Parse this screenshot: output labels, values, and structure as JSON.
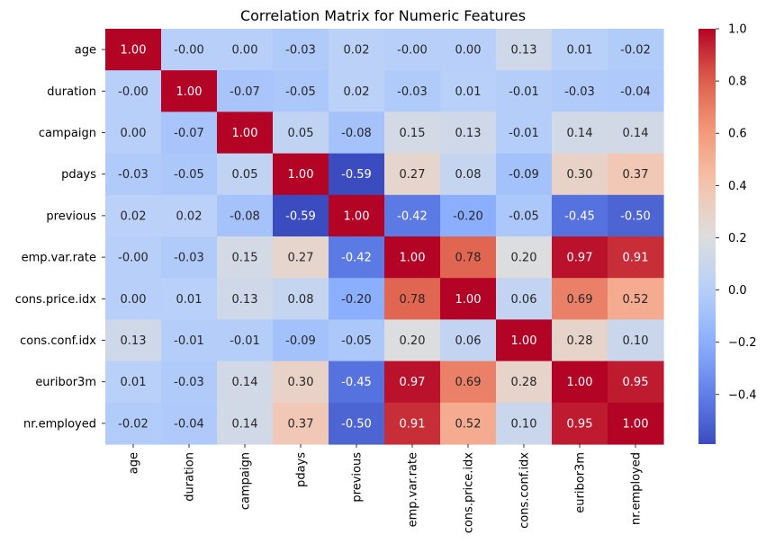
{
  "chart_data": {
    "type": "heatmap",
    "title": "Correlation Matrix for Numeric Features",
    "xlabel": "",
    "ylabel": "",
    "labels": [
      "age",
      "duration",
      "campaign",
      "pdays",
      "previous",
      "emp.var.rate",
      "cons.price.idx",
      "cons.conf.idx",
      "euribor3m",
      "nr.employed"
    ],
    "values": [
      [
        1.0,
        -0.0,
        0.0,
        -0.03,
        0.02,
        -0.0,
        0.0,
        0.13,
        0.01,
        -0.02
      ],
      [
        -0.0,
        1.0,
        -0.07,
        -0.05,
        0.02,
        -0.03,
        0.01,
        -0.01,
        -0.03,
        -0.04
      ],
      [
        0.0,
        -0.07,
        1.0,
        0.05,
        -0.08,
        0.15,
        0.13,
        -0.01,
        0.14,
        0.14
      ],
      [
        -0.03,
        -0.05,
        0.05,
        1.0,
        -0.59,
        0.27,
        0.08,
        -0.09,
        0.3,
        0.37
      ],
      [
        0.02,
        0.02,
        -0.08,
        -0.59,
        1.0,
        -0.42,
        -0.2,
        -0.05,
        -0.45,
        -0.5
      ],
      [
        -0.0,
        -0.03,
        0.15,
        0.27,
        -0.42,
        1.0,
        0.78,
        0.2,
        0.97,
        0.91
      ],
      [
        0.0,
        0.01,
        0.13,
        0.08,
        -0.2,
        0.78,
        1.0,
        0.06,
        0.69,
        0.52
      ],
      [
        0.13,
        -0.01,
        -0.01,
        -0.09,
        -0.05,
        0.2,
        0.06,
        1.0,
        0.28,
        0.1
      ],
      [
        0.01,
        -0.03,
        0.14,
        0.3,
        -0.45,
        0.97,
        0.69,
        0.28,
        1.0,
        0.95
      ],
      [
        -0.02,
        -0.04,
        0.14,
        0.37,
        -0.5,
        0.91,
        0.52,
        0.1,
        0.95,
        1.0
      ]
    ],
    "value_format": "2 decimals",
    "colormap": "coolwarm",
    "color_range": [
      -0.59,
      1.0
    ],
    "colorbar_ticks": [
      1.0,
      0.8,
      0.6,
      0.4,
      0.2,
      0.0,
      -0.2,
      -0.4
    ],
    "colorbar_tick_labels": [
      "1.0",
      "0.8",
      "0.6",
      "0.4",
      "0.2",
      "0.0",
      "−0.2",
      "−0.4"
    ],
    "x_tick_rotation": "vertical",
    "grid": false,
    "legend": "colorbar-right"
  }
}
